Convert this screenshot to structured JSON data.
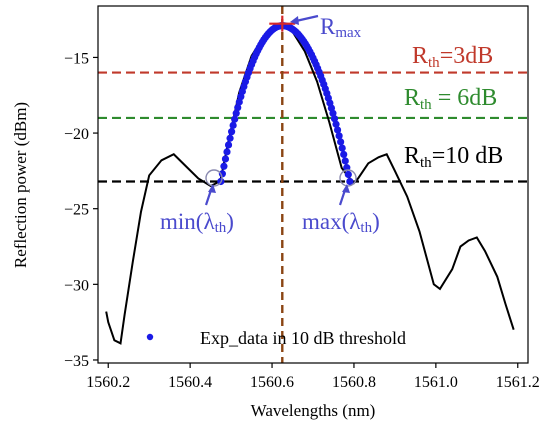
{
  "chart_data": {
    "type": "line",
    "xlabel": "Wavelengths (nm)",
    "ylabel": "Reflection power (dBm)",
    "xlim": [
      1560.175,
      1561.225
    ],
    "ylim": [
      -35.2,
      -11.6
    ],
    "xticks": [
      1560.2,
      1560.4,
      1560.6,
      1560.8,
      1561.0,
      1561.2
    ],
    "xtick_labels": [
      "1560.2",
      "1560.4",
      "1560.6",
      "1560.8",
      "1561.0",
      "1561.2"
    ],
    "yticks": [
      -15,
      -20,
      -25,
      -30,
      -35
    ],
    "ytick_labels": [
      "−15",
      "−20",
      "−25",
      "−30",
      "−35"
    ],
    "grid": false,
    "legend_position": "bottom-right",
    "colors": {
      "spectrum": "#000000",
      "exp_data": "#1a1ae6",
      "th_3db": "#c0392b",
      "th_6db": "#2e8b2e",
      "th_10db": "#000000",
      "annotation": "#4a4acd",
      "peak_vline": "#8b4513",
      "peak_marker": "#d62728"
    },
    "series": [
      {
        "role": "spectrum",
        "x": [
          1560.195,
          1560.2,
          1560.215,
          1560.23,
          1560.24,
          1560.26,
          1560.28,
          1560.3,
          1560.33,
          1560.36,
          1560.39,
          1560.42,
          1560.45,
          1560.465,
          1560.475,
          1560.49,
          1560.52,
          1560.55,
          1560.58,
          1560.6,
          1560.625,
          1560.65,
          1560.68,
          1560.71,
          1560.74,
          1560.77,
          1560.79,
          1560.8,
          1560.81,
          1560.835,
          1560.86,
          1560.88,
          1560.9,
          1560.93,
          1560.96,
          1560.98,
          1560.995,
          1561.01,
          1561.04,
          1561.06,
          1561.08,
          1561.1,
          1561.12,
          1561.15,
          1561.17,
          1561.19
        ],
        "y": [
          -31.8,
          -32.5,
          -33.7,
          -33.9,
          -32.0,
          -28.5,
          -25.2,
          -22.8,
          -21.8,
          -21.4,
          -22.2,
          -23.0,
          -23.5,
          -23.3,
          -23.0,
          -21.0,
          -17.3,
          -14.9,
          -13.6,
          -13.0,
          -12.9,
          -13.3,
          -14.6,
          -16.6,
          -19.3,
          -22.3,
          -23.0,
          -23.3,
          -23.0,
          -22.0,
          -21.6,
          -21.4,
          -22.5,
          -24.2,
          -26.5,
          -28.5,
          -30.0,
          -30.3,
          -29.0,
          -27.5,
          -27.1,
          -26.9,
          -27.8,
          -29.5,
          -31.3,
          -33.0
        ]
      },
      {
        "name": "Exp_data in 10 dB threshold",
        "role": "exp_data",
        "x_start": 1560.475,
        "x_end": 1560.79,
        "n_points": 85,
        "x_peak": 1560.625,
        "y_peak": -12.9,
        "y_ends": -23.2
      }
    ],
    "thresholds": [
      {
        "key": "th_3db",
        "value": -16.0,
        "label_main": "R",
        "label_sub": "th",
        "label_rest": "=3dB"
      },
      {
        "key": "th_6db",
        "value": -19.0,
        "label_main": "R",
        "label_sub": "th",
        "label_rest": " = 6dB"
      },
      {
        "key": "th_10db",
        "value": -23.2,
        "label_main": "R",
        "label_sub": "th",
        "label_rest": "=10 dB"
      }
    ],
    "peak_vline_x": 1560.625,
    "annotations": {
      "rmax": {
        "main": "R",
        "sub": "max",
        "x": 1560.625,
        "y": -12.9
      },
      "min_lambda": {
        "pre": "min(λ",
        "sub": "th",
        "post": ")",
        "x": 1560.475,
        "y": -23.3
      },
      "max_lambda": {
        "pre": "max(λ",
        "sub": "th",
        "post": ")",
        "x": 1560.79,
        "y": -23.3
      }
    }
  }
}
